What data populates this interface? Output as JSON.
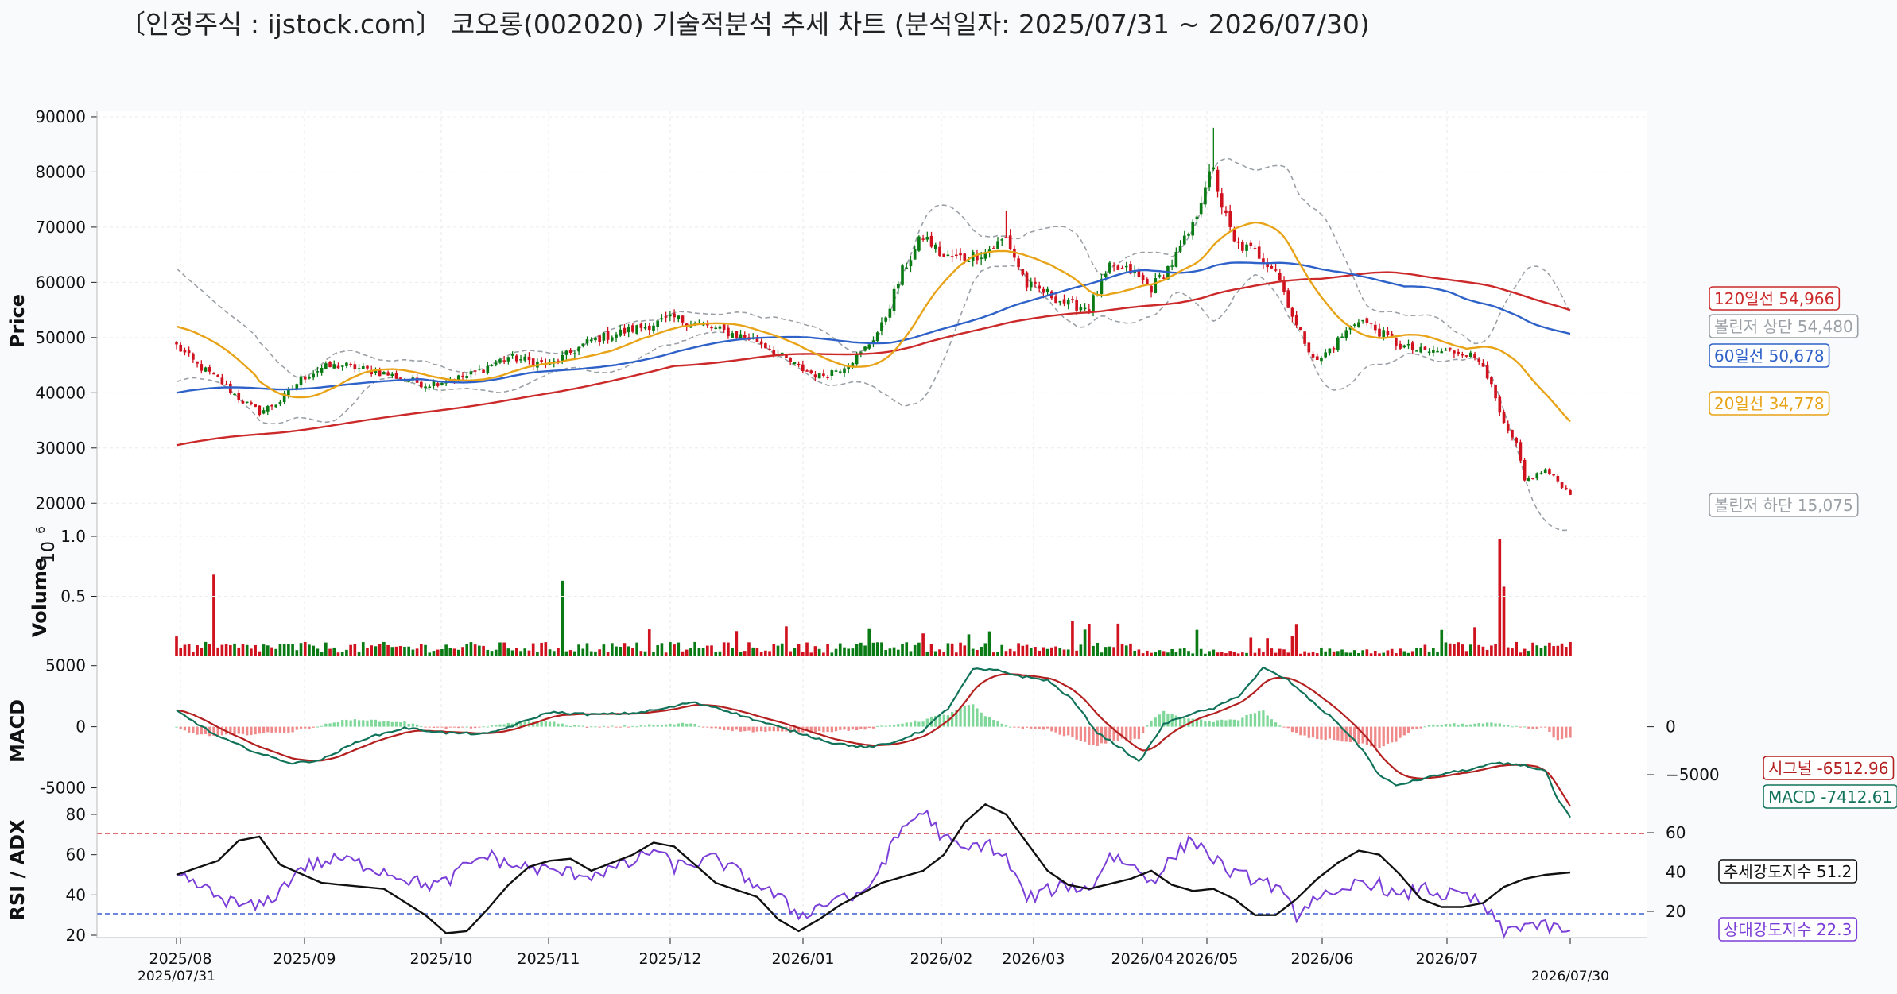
{
  "title": "〔인정주식 : ijstock.com〕 코오롱(002020) 기술적분석 추세 차트 (분석일자: 2025/07/31 ~ 2026/07/30)",
  "colors": {
    "up": "#0a7a14",
    "down": "#d0121f",
    "ma20": "#e8a317",
    "ma60": "#2f62c9",
    "ma120": "#cc2a2a",
    "boll": "#9aa0a6",
    "macd": "#11725a",
    "signal": "#b41f1f",
    "hist_pos": "#7fd89a",
    "hist_neg": "#f08a8a",
    "rsi": "#7b3fd8",
    "adx": "#111111",
    "ref_red": "#d43b3b",
    "ref_blue": "#3b5fd4"
  },
  "chart_data": {
    "type": "candlestick-with-indicators",
    "x_ticks": [
      "2025/08",
      "2025/09",
      "2025/10",
      "2025/11",
      "2025/12",
      "2026/01",
      "2026/02",
      "2026/03",
      "2026/04",
      "2026/05",
      "2026/06",
      "2026/07"
    ],
    "x_start_label": "2025/07/31",
    "x_end_label": "2026/07/30",
    "price": {
      "ylabel": "Price",
      "ylim": [
        15000,
        91000
      ],
      "yticks": [
        20000,
        30000,
        40000,
        50000,
        60000,
        70000,
        80000,
        90000
      ],
      "anchors": [
        [
          0,
          48500
        ],
        [
          5,
          45000
        ],
        [
          10,
          42500
        ],
        [
          15,
          39000
        ],
        [
          20,
          36500
        ],
        [
          25,
          38500
        ],
        [
          30,
          42500
        ],
        [
          35,
          44500
        ],
        [
          40,
          45000
        ],
        [
          50,
          43500
        ],
        [
          60,
          41500
        ],
        [
          70,
          43000
        ],
        [
          80,
          46500
        ],
        [
          90,
          45000
        ],
        [
          100,
          49500
        ],
        [
          110,
          51500
        ],
        [
          120,
          53500
        ],
        [
          130,
          51500
        ],
        [
          140,
          49500
        ],
        [
          150,
          44500
        ],
        [
          155,
          43000
        ],
        [
          160,
          44500
        ],
        [
          165,
          47000
        ],
        [
          170,
          52000
        ],
        [
          175,
          62000
        ],
        [
          180,
          68500
        ],
        [
          185,
          64500
        ],
        [
          190,
          64500
        ],
        [
          195,
          65500
        ],
        [
          200,
          68000
        ],
        [
          205,
          59500
        ],
        [
          210,
          58000
        ],
        [
          215,
          56000
        ],
        [
          220,
          55500
        ],
        [
          225,
          62500
        ],
        [
          230,
          62000
        ],
        [
          235,
          59000
        ],
        [
          240,
          63500
        ],
        [
          245,
          70000
        ],
        [
          248,
          78000
        ],
        [
          250,
          80000
        ],
        [
          252,
          74000
        ],
        [
          255,
          67000
        ],
        [
          260,
          65500
        ],
        [
          265,
          62500
        ],
        [
          270,
          52000
        ],
        [
          275,
          45500
        ],
        [
          280,
          49500
        ],
        [
          285,
          53500
        ],
        [
          290,
          51000
        ],
        [
          295,
          48500
        ],
        [
          300,
          47500
        ],
        [
          305,
          47500
        ],
        [
          310,
          47500
        ],
        [
          315,
          45500
        ],
        [
          320,
          34000
        ],
        [
          323,
          30500
        ],
        [
          325,
          24000
        ],
        [
          330,
          26000
        ],
        [
          333,
          24000
        ],
        [
          336,
          21500
        ]
      ],
      "ma20": {
        "name": "20일선",
        "last": 34778,
        "label": "20일선 34,778"
      },
      "ma60": {
        "name": "60일선",
        "last": 50678,
        "label": "60일선 50,678"
      },
      "ma120": {
        "name": "120일선",
        "last": 54966,
        "label": "120일선 54,966"
      },
      "boll_upper": {
        "name": "볼린저 상단",
        "last": 54480,
        "label": "볼린저 상단 54,480"
      },
      "boll_lower": {
        "name": "볼린저 하단",
        "last": 15075,
        "label": "볼린저 하단 15,075"
      }
    },
    "volume": {
      "ylabel": "Volume",
      "exponent_label": "10",
      "exponent_power": "6",
      "yticks": [
        "0.5",
        "1.0"
      ],
      "ylim": [
        0,
        1.0
      ],
      "spikes": [
        [
          9,
          0.68
        ],
        [
          93,
          0.63
        ],
        [
          270,
          0.27
        ],
        [
          305,
          0.22
        ],
        [
          319,
          0.98
        ],
        [
          320,
          0.58
        ]
      ]
    },
    "macd": {
      "ylabel": "MACD",
      "ylim": [
        -6200,
        5500
      ],
      "yticks_left": [
        "5000",
        "0",
        "-5000"
      ],
      "yticks_right": [
        "0",
        "−5000"
      ],
      "macd_last": -7412.61,
      "macd_label": "MACD -7412.61",
      "signal_last": -6512.96,
      "signal_label": "시그널 -6512.96"
    },
    "rsi_adx": {
      "ylabel": "RSI / ADX",
      "yticks_left": [
        "20",
        "40",
        "60",
        "80"
      ],
      "yticks_right": [
        "20",
        "40",
        "60"
      ],
      "ref_lines": [
        70,
        30
      ],
      "rsi_last": 22.3,
      "rsi_label": "상대강도지수 22.3",
      "adx_last": 51.2,
      "adx_label": "추세강도지수 51.2",
      "rsi_anchors": [
        [
          0,
          49
        ],
        [
          5,
          45
        ],
        [
          10,
          39
        ],
        [
          15,
          35
        ],
        [
          20,
          34
        ],
        [
          25,
          42
        ],
        [
          30,
          54
        ],
        [
          40,
          58
        ],
        [
          50,
          52
        ],
        [
          60,
          45
        ],
        [
          65,
          46
        ],
        [
          70,
          55
        ],
        [
          75,
          60
        ],
        [
          80,
          55
        ],
        [
          90,
          52
        ],
        [
          100,
          50
        ],
        [
          110,
          56
        ],
        [
          115,
          63
        ],
        [
          120,
          54
        ],
        [
          130,
          58
        ],
        [
          140,
          45
        ],
        [
          145,
          39
        ],
        [
          150,
          30
        ],
        [
          155,
          34
        ],
        [
          160,
          40
        ],
        [
          165,
          38
        ],
        [
          170,
          55
        ],
        [
          175,
          73
        ],
        [
          180,
          82
        ],
        [
          185,
          68
        ],
        [
          190,
          62
        ],
        [
          195,
          66
        ],
        [
          200,
          58
        ],
        [
          205,
          38
        ],
        [
          210,
          42
        ],
        [
          215,
          45
        ],
        [
          220,
          42
        ],
        [
          225,
          60
        ],
        [
          230,
          55
        ],
        [
          235,
          47
        ],
        [
          240,
          58
        ],
        [
          245,
          68
        ],
        [
          250,
          58
        ],
        [
          255,
          50
        ],
        [
          260,
          48
        ],
        [
          265,
          44
        ],
        [
          270,
          30
        ],
        [
          275,
          40
        ],
        [
          280,
          38
        ],
        [
          285,
          47
        ],
        [
          290,
          45
        ],
        [
          295,
          38
        ],
        [
          300,
          44
        ],
        [
          305,
          40
        ],
        [
          310,
          40
        ],
        [
          315,
          35
        ],
        [
          320,
          21
        ],
        [
          325,
          26
        ],
        [
          330,
          24
        ],
        [
          336,
          22.3
        ]
      ],
      "adx_anchors": [
        [
          0,
          50
        ],
        [
          10,
          57
        ],
        [
          15,
          67
        ],
        [
          20,
          69
        ],
        [
          25,
          55
        ],
        [
          35,
          46
        ],
        [
          45,
          44
        ],
        [
          50,
          43
        ],
        [
          60,
          30
        ],
        [
          65,
          21
        ],
        [
          70,
          22
        ],
        [
          75,
          33
        ],
        [
          80,
          45
        ],
        [
          85,
          54
        ],
        [
          90,
          57
        ],
        [
          95,
          58
        ],
        [
          100,
          52
        ],
        [
          110,
          60
        ],
        [
          115,
          66
        ],
        [
          120,
          64
        ],
        [
          125,
          55
        ],
        [
          130,
          46
        ],
        [
          140,
          39
        ],
        [
          145,
          28
        ],
        [
          150,
          22
        ],
        [
          155,
          28
        ],
        [
          160,
          35
        ],
        [
          170,
          46
        ],
        [
          180,
          52
        ],
        [
          185,
          60
        ],
        [
          190,
          76
        ],
        [
          195,
          85
        ],
        [
          200,
          80
        ],
        [
          205,
          66
        ],
        [
          210,
          52
        ],
        [
          215,
          45
        ],
        [
          220,
          43
        ],
        [
          230,
          48
        ],
        [
          235,
          52
        ],
        [
          240,
          45
        ],
        [
          245,
          42
        ],
        [
          250,
          43
        ],
        [
          255,
          38
        ],
        [
          260,
          30
        ],
        [
          265,
          30
        ],
        [
          270,
          38
        ],
        [
          275,
          48
        ],
        [
          280,
          56
        ],
        [
          285,
          62
        ],
        [
          290,
          60
        ],
        [
          295,
          50
        ],
        [
          300,
          38
        ],
        [
          305,
          34
        ],
        [
          310,
          34
        ],
        [
          315,
          36
        ],
        [
          320,
          44
        ],
        [
          325,
          48
        ],
        [
          330,
          50
        ],
        [
          336,
          51.2
        ]
      ]
    }
  }
}
